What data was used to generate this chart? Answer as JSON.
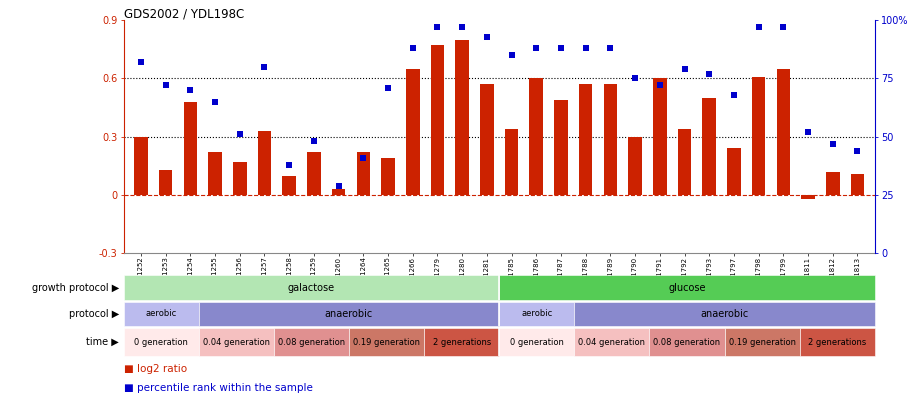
{
  "title": "GDS2002 / YDL198C",
  "samples": [
    "GSM41252",
    "GSM41253",
    "GSM41254",
    "GSM41255",
    "GSM41256",
    "GSM41257",
    "GSM41258",
    "GSM41259",
    "GSM41260",
    "GSM41264",
    "GSM41265",
    "GSM41266",
    "GSM41279",
    "GSM41280",
    "GSM41281",
    "GSM41785",
    "GSM41786",
    "GSM41787",
    "GSM41788",
    "GSM41789",
    "GSM41790",
    "GSM41791",
    "GSM41792",
    "GSM41793",
    "GSM41797",
    "GSM41798",
    "GSM41799",
    "GSM41811",
    "GSM41812",
    "GSM41813"
  ],
  "log2_ratio": [
    0.3,
    0.13,
    0.48,
    0.22,
    0.17,
    0.33,
    0.1,
    0.22,
    0.03,
    0.22,
    0.19,
    0.65,
    0.77,
    0.8,
    0.57,
    0.34,
    0.6,
    0.49,
    0.57,
    0.57,
    0.3,
    0.6,
    0.34,
    0.5,
    0.24,
    0.61,
    0.65,
    -0.02,
    0.12,
    0.11
  ],
  "percentile": [
    82,
    72,
    70,
    65,
    51,
    80,
    38,
    48,
    29,
    41,
    71,
    88,
    97,
    97,
    93,
    85,
    88,
    88,
    88,
    88,
    75,
    72,
    79,
    77,
    68,
    97,
    97,
    52,
    47,
    44
  ],
  "bar_color": "#cc2200",
  "dot_color": "#0000cc",
  "bg_color": "#ffffff",
  "left_ylim": [
    -0.3,
    0.9
  ],
  "right_ylim": [
    0,
    100
  ],
  "left_yticks": [
    -0.3,
    0.0,
    0.3,
    0.6,
    0.9
  ],
  "right_yticks": [
    0,
    25,
    50,
    75,
    100
  ],
  "right_yticklabels": [
    "0",
    "25",
    "50",
    "75",
    "100%"
  ],
  "growth_protocol_groups": [
    {
      "text": "galactose",
      "start": 0,
      "end": 15,
      "color": "#b3e6b3"
    },
    {
      "text": "glucose",
      "start": 15,
      "end": 30,
      "color": "#55cc55"
    }
  ],
  "protocol_groups": [
    {
      "text": "aerobic",
      "start": 0,
      "end": 3,
      "color": "#bbbbee"
    },
    {
      "text": "anaerobic",
      "start": 3,
      "end": 15,
      "color": "#8888cc"
    },
    {
      "text": "aerobic",
      "start": 15,
      "end": 18,
      "color": "#bbbbee"
    },
    {
      "text": "anaerobic",
      "start": 18,
      "end": 30,
      "color": "#8888cc"
    }
  ],
  "time_groups": [
    {
      "text": "0 generation",
      "start": 0,
      "end": 3,
      "color": "#ffeaea"
    },
    {
      "text": "0.04 generation",
      "start": 3,
      "end": 6,
      "color": "#f5c0c0"
    },
    {
      "text": "0.08 generation",
      "start": 6,
      "end": 9,
      "color": "#e09090"
    },
    {
      "text": "0.19 generation",
      "start": 9,
      "end": 12,
      "color": "#cc7766"
    },
    {
      "text": "2 generations",
      "start": 12,
      "end": 15,
      "color": "#cc5544"
    },
    {
      "text": "0 generation",
      "start": 15,
      "end": 18,
      "color": "#ffeaea"
    },
    {
      "text": "0.04 generation",
      "start": 18,
      "end": 21,
      "color": "#f5c0c0"
    },
    {
      "text": "0.08 generation",
      "start": 21,
      "end": 24,
      "color": "#e09090"
    },
    {
      "text": "0.19 generation",
      "start": 24,
      "end": 27,
      "color": "#cc7766"
    },
    {
      "text": "2 generations",
      "start": 27,
      "end": 30,
      "color": "#cc5544"
    }
  ],
  "galactose_separator": 15,
  "n_samples": 30,
  "row_labels": [
    "growth protocol",
    "protocol",
    "time"
  ],
  "legend_items": [
    {
      "label": "log2 ratio",
      "color": "#cc2200"
    },
    {
      "label": "percentile rank within the sample",
      "color": "#0000cc"
    }
  ]
}
